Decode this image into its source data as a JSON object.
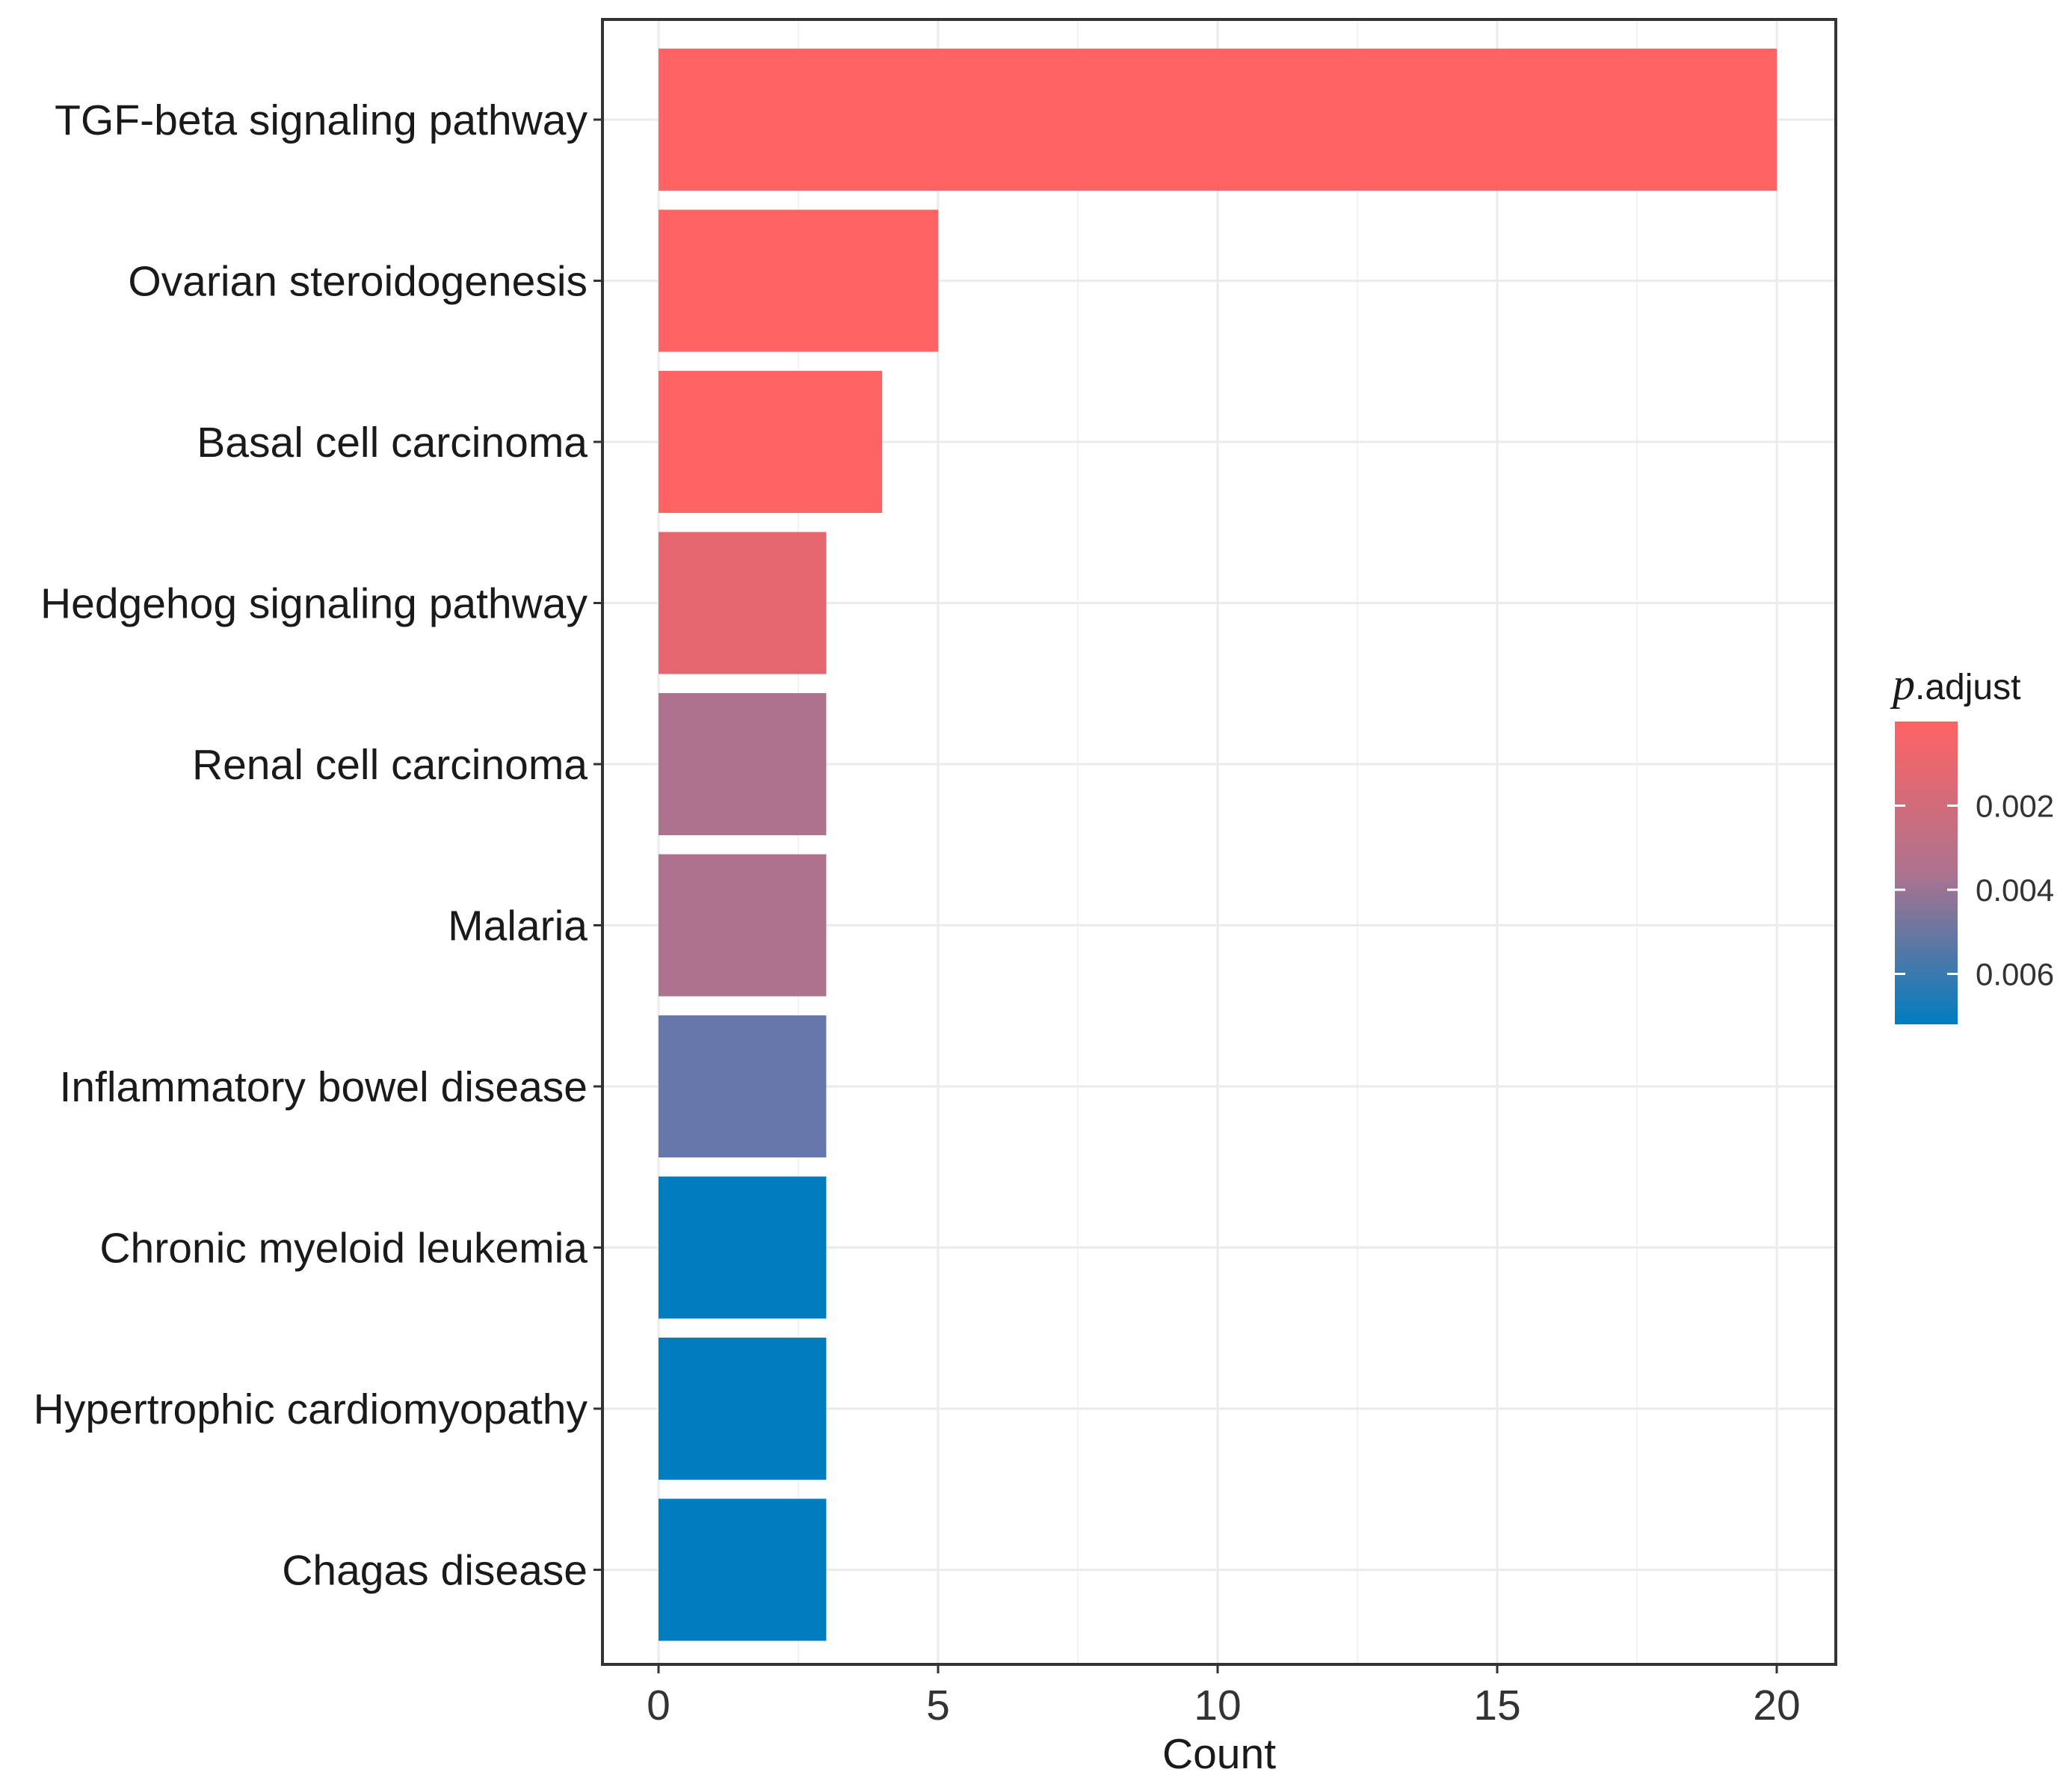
{
  "chart_data": {
    "type": "bar",
    "orientation": "horizontal",
    "title": "",
    "xlabel": "Count",
    "ylabel": "",
    "xlim": [
      0,
      21
    ],
    "x_ticks": [
      0,
      5,
      10,
      15,
      20
    ],
    "x_tick_labels": [
      "0",
      "5",
      "10",
      "15",
      "20"
    ],
    "grid": true,
    "categories": [
      "TGF-beta signaling pathway",
      "Ovarian steroidogenesis",
      "Basal cell carcinoma",
      "Hedgehog signaling pathway",
      "Renal cell carcinoma",
      "Malaria",
      "Inflammatory bowel disease",
      "Chronic myeloid leukemia",
      "Hypertrophic cardiomyopathy",
      "Chagas disease"
    ],
    "values": [
      20,
      5,
      4,
      3,
      3,
      3,
      3,
      3,
      3,
      3
    ],
    "p_adjust": [
      0.0,
      0.0,
      0.0,
      0.0017,
      0.0035,
      0.0035,
      0.0052,
      0.007,
      0.007,
      0.007
    ],
    "bar_colors": [
      "#FF6363",
      "#FF6363",
      "#FF6363",
      "#E5666F",
      "#AD738E",
      "#AD738E",
      "#6677AB",
      "#007DBF",
      "#007DBF",
      "#007DBF"
    ],
    "legend": {
      "title_prefix": "p",
      "title_suffix": ".adjust",
      "placement": "right",
      "low_color": "#FF6363",
      "high_color": "#007DBF",
      "range": [
        0,
        0.0072
      ],
      "ticks": [
        0.002,
        0.004,
        0.006
      ],
      "tick_labels": [
        "0.002",
        "0.004",
        "0.006"
      ]
    }
  }
}
